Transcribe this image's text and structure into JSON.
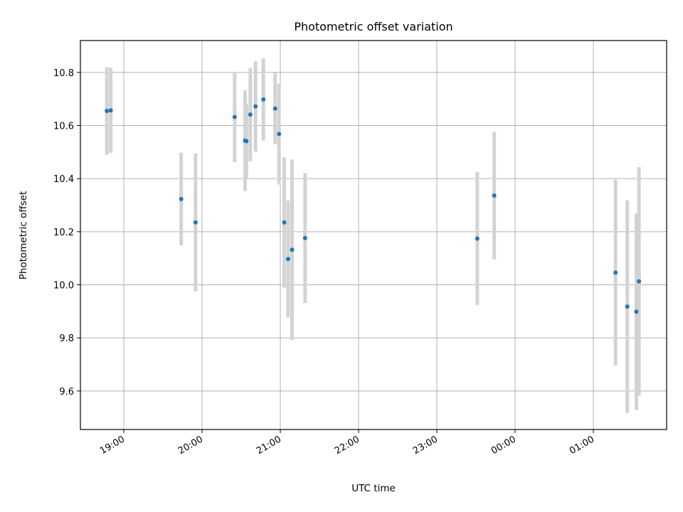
{
  "chart_data": {
    "type": "scatter",
    "title": "Photometric offset variation",
    "xlabel": "UTC time",
    "ylabel": "Photometric offset",
    "x_ticks": [
      "19:00",
      "20:00",
      "21:00",
      "22:00",
      "23:00",
      "00:00",
      "01:00"
    ],
    "y_ticks": [
      "9.6",
      "9.8",
      "10.0",
      "10.2",
      "10.4",
      "10.6",
      "10.8"
    ],
    "ylim": [
      9.455,
      10.92
    ],
    "grid": true,
    "legend": "none",
    "colors": {
      "point": "#1f77b4",
      "errorbar": "#d3d3d3",
      "grid": "#b0b0b0"
    },
    "series": [
      {
        "points": [
          {
            "x": "18:47",
            "y": 10.655,
            "yerr": 0.165
          },
          {
            "x": "18:50",
            "y": 10.657,
            "yerr": 0.16
          },
          {
            "x": "19:44",
            "y": 10.323,
            "yerr": 0.175
          },
          {
            "x": "19:55",
            "y": 10.235,
            "yerr": 0.26
          },
          {
            "x": "20:25",
            "y": 10.632,
            "yerr": 0.17
          },
          {
            "x": "20:33",
            "y": 10.543,
            "yerr": 0.19
          },
          {
            "x": "20:34",
            "y": 10.541,
            "yerr": 0.14
          },
          {
            "x": "20:37",
            "y": 10.641,
            "yerr": 0.175
          },
          {
            "x": "20:41",
            "y": 10.672,
            "yerr": 0.17
          },
          {
            "x": "20:47",
            "y": 10.698,
            "yerr": 0.155
          },
          {
            "x": "20:56",
            "y": 10.664,
            "yerr": 0.135
          },
          {
            "x": "20:59",
            "y": 10.568,
            "yerr": 0.19
          },
          {
            "x": "21:03",
            "y": 10.235,
            "yerr": 0.245
          },
          {
            "x": "21:06",
            "y": 10.097,
            "yerr": 0.22
          },
          {
            "x": "21:09",
            "y": 10.132,
            "yerr": 0.34
          },
          {
            "x": "21:19",
            "y": 10.176,
            "yerr": 0.245
          },
          {
            "x": "23:31",
            "y": 10.174,
            "yerr": 0.25
          },
          {
            "x": "23:44",
            "y": 10.336,
            "yerr": 0.24
          },
          {
            "x": "01:17",
            "y": 10.046,
            "yerr": 0.35
          },
          {
            "x": "01:26",
            "y": 9.918,
            "yerr": 0.4
          },
          {
            "x": "01:33",
            "y": 9.899,
            "yerr": 0.37
          },
          {
            "x": "01:35",
            "y": 10.013,
            "yerr": 0.43
          }
        ]
      }
    ]
  }
}
